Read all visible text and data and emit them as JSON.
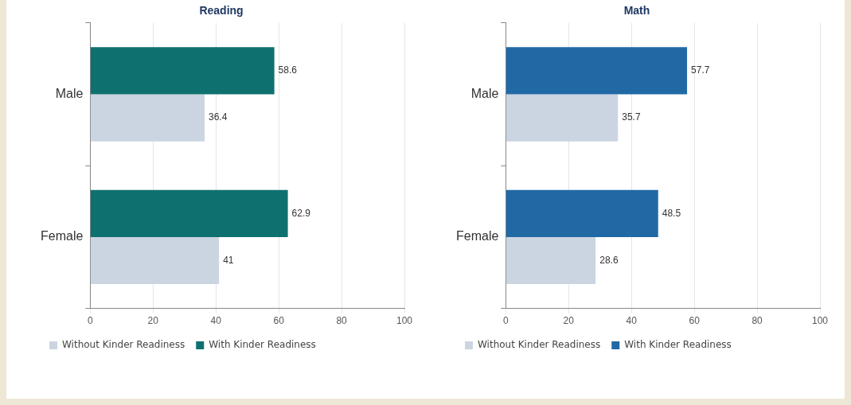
{
  "chart_data": [
    {
      "type": "bar",
      "orientation": "horizontal",
      "title": "Reading",
      "categories": [
        "Male",
        "Female"
      ],
      "series": [
        {
          "name": "With Kinder Readiness",
          "color": "#0e716f",
          "values": [
            58.6,
            62.9
          ]
        },
        {
          "name": "Without Kinder Readiness",
          "color": "#cbd5e1",
          "values": [
            36.4,
            41
          ]
        }
      ],
      "xlim": [
        0,
        100
      ],
      "xticks": [
        0,
        20,
        40,
        60,
        80,
        100
      ],
      "grid": "x",
      "legend": "bottom",
      "data_labels": true
    },
    {
      "type": "bar",
      "orientation": "horizontal",
      "title": "Math",
      "categories": [
        "Male",
        "Female"
      ],
      "series": [
        {
          "name": "With Kinder Readiness",
          "color": "#2169a5",
          "values": [
            57.7,
            48.5
          ]
        },
        {
          "name": "Without Kinder Readiness",
          "color": "#cbd5e1",
          "values": [
            35.7,
            28.6
          ]
        }
      ],
      "xlim": [
        0,
        100
      ],
      "xticks": [
        0,
        20,
        40,
        60,
        80,
        100
      ],
      "grid": "x",
      "legend": "bottom",
      "data_labels": true
    }
  ]
}
